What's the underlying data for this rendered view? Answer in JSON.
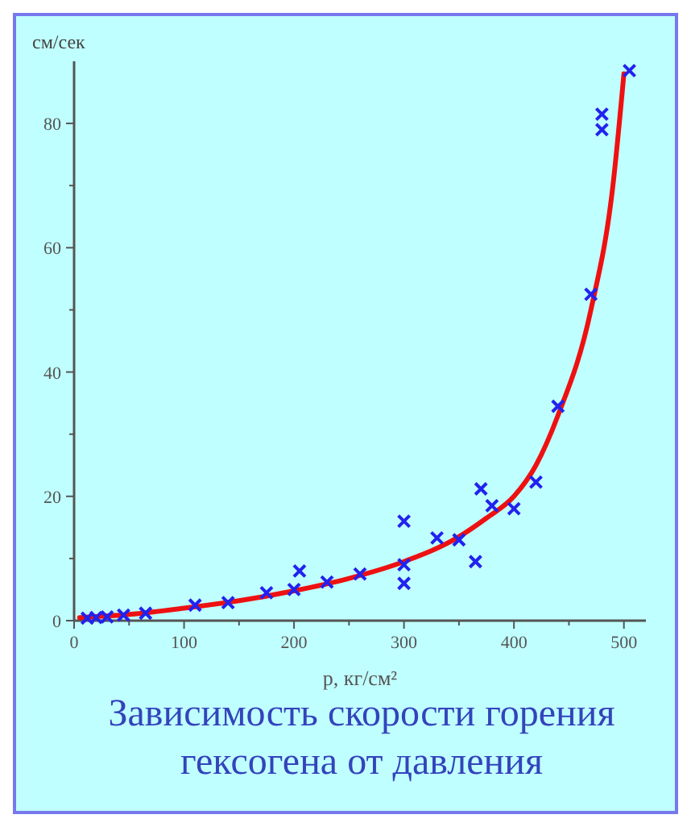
{
  "chart_data": {
    "type": "scatter",
    "title": "Зависимость скорости горения гексогена от давления",
    "xlabel": "p, кг/см²",
    "ylabel": "см/сек",
    "xlim": [
      0,
      520
    ],
    "ylim": [
      0,
      90
    ],
    "xticks": [
      0,
      {
        "value": 50,
        "label": null
      },
      100,
      {
        "value": 150,
        "label": null
      },
      200,
      {
        "value": 250,
        "label": null
      },
      300,
      {
        "value": 350,
        "label": null
      },
      400,
      {
        "value": 450,
        "label": null
      },
      500
    ],
    "yticks": [
      0,
      {
        "value": 10,
        "label": null
      },
      20,
      {
        "value": 30,
        "label": null
      },
      40,
      {
        "value": 50,
        "label": null
      },
      60,
      {
        "value": 70,
        "label": null
      },
      80
    ],
    "grid": false,
    "series": [
      {
        "color": "#2222ee",
        "marker": "cross",
        "x": [
          12,
          20,
          30,
          45,
          65,
          110,
          140,
          175,
          200,
          205,
          230,
          260,
          300,
          300,
          300,
          330,
          350,
          365,
          370,
          380,
          400,
          420,
          440,
          470,
          480,
          480,
          505
        ],
        "values": [
          0.4,
          0.5,
          0.6,
          0.9,
          1.2,
          2.5,
          2.9,
          4.5,
          5,
          8,
          6.2,
          7.5,
          16,
          9,
          6,
          13.3,
          13,
          9.5,
          21.2,
          18.5,
          18,
          22.3,
          34.5,
          52.5,
          81.5,
          79,
          88.5
        ]
      },
      {
        "type": "line",
        "color": "#ee1111",
        "line_style": "solid",
        "x": [
          5,
          50,
          100,
          150,
          200,
          250,
          300,
          350,
          375,
          400,
          420,
          440,
          470,
          490,
          500
        ],
        "values": [
          0.5,
          1,
          2,
          3.2,
          4.8,
          6.8,
          9.5,
          13.5,
          16.5,
          20,
          25,
          33,
          50,
          70,
          88
        ]
      }
    ]
  }
}
